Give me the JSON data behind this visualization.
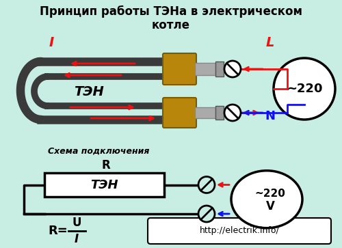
{
  "title_line1": "Принцип работы ТЭНа в электрическом",
  "title_line2": "котле",
  "bg_color": "#c8ede3",
  "label_ten_top": "ТЭН",
  "label_i": "I",
  "label_l": "L",
  "label_n": "N",
  "label_r": "R",
  "label_ten_box": "ТЭН",
  "label_220_top": "~220",
  "label_schema": "Схема подключения",
  "label_url": "http://electrik.info/",
  "red_color": "#ee1111",
  "blue_color": "#1111ee",
  "black_color": "#000000",
  "tube_color": "#3a3a3a",
  "brass_color": "#b8860b",
  "silver_color": "#aaaaaa"
}
